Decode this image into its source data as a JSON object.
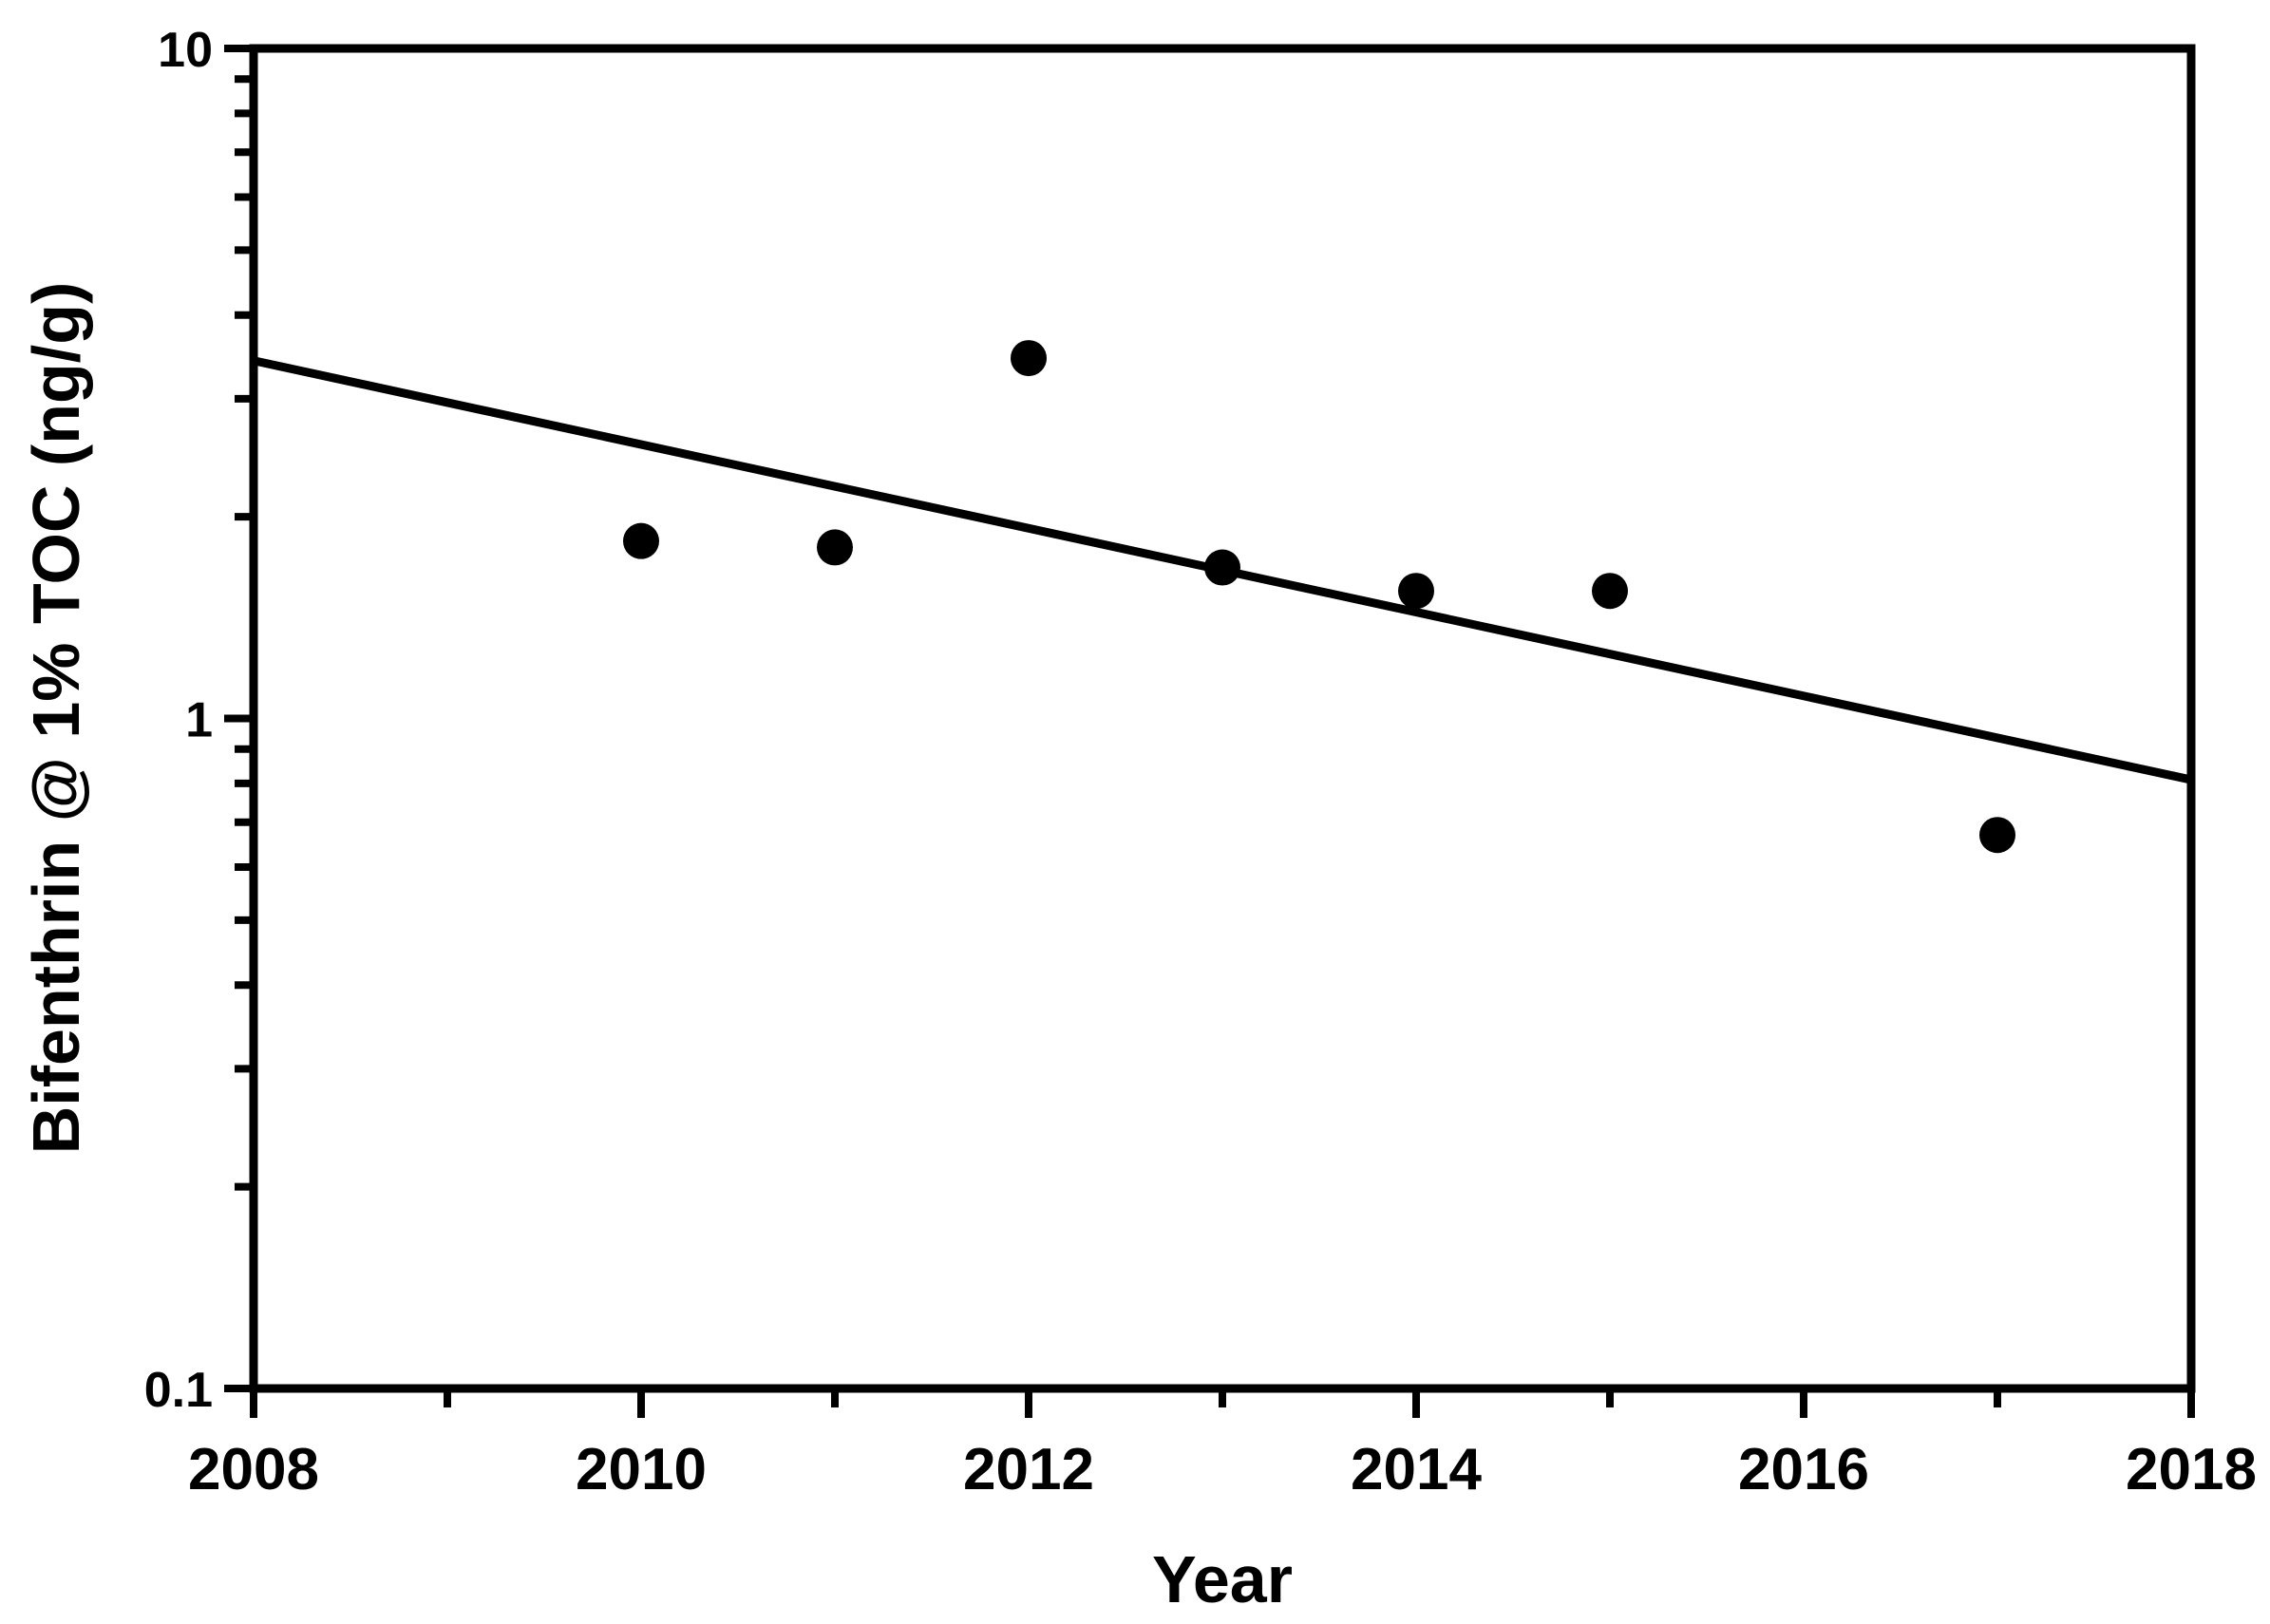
{
  "figure": {
    "background": "#ffffff",
    "foreground": "#000000"
  },
  "chart_data": {
    "type": "scatter",
    "title": "",
    "xlabel": "Year",
    "ylabel": "Bifenthrin @ 1% TOC (ng/g)",
    "grid": false,
    "legend": "none",
    "x_axis": {
      "scale": "linear",
      "min": 2008,
      "max": 2018,
      "major_ticks": [
        2008,
        2010,
        2012,
        2014,
        2016,
        2018
      ],
      "tick_labels": [
        "2008",
        "2010",
        "2012",
        "2014",
        "2016",
        "2018"
      ],
      "minor_ticks": [
        2009,
        2011,
        2013,
        2015,
        2017
      ]
    },
    "y_axis": {
      "scale": "log",
      "min": 0.1,
      "max": 10,
      "major_ticks": [
        10,
        1,
        0.1
      ],
      "tick_labels": [
        "10",
        "1",
        "0.1"
      ],
      "minor_ticks": [
        9,
        8,
        7,
        6,
        5,
        4,
        3,
        2,
        0.9,
        0.8,
        0.7,
        0.6,
        0.5,
        0.4,
        0.3,
        0.2
      ]
    },
    "series": [
      {
        "marker": "filled-circle",
        "color": "#000000",
        "points": [
          {
            "x": 2010,
            "y": 1.84
          },
          {
            "x": 2011,
            "y": 1.8
          },
          {
            "x": 2012,
            "y": 3.45
          },
          {
            "x": 2013,
            "y": 1.68
          },
          {
            "x": 2014,
            "y": 1.55
          },
          {
            "x": 2015,
            "y": 1.55
          },
          {
            "x": 2017,
            "y": 0.67
          }
        ]
      }
    ],
    "trendline": {
      "x1": 2008,
      "y1": 3.42,
      "x2": 2018,
      "y2": 0.81,
      "color": "#000000"
    }
  }
}
